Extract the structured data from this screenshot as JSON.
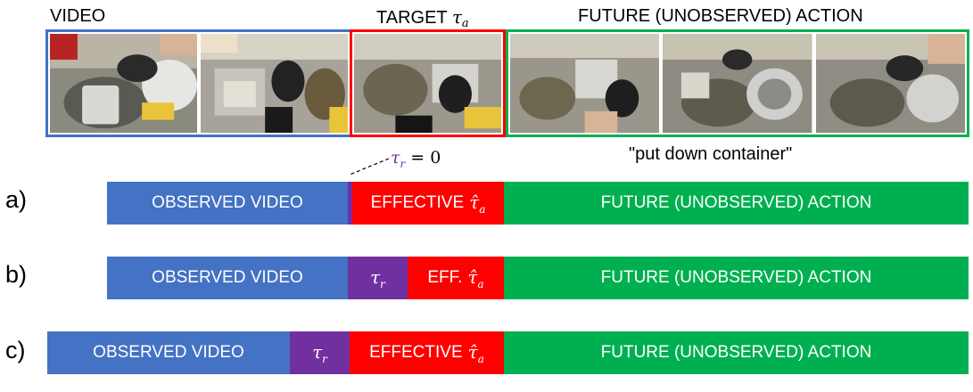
{
  "headers": {
    "video": "VIDEO",
    "target_prefix": "TARGET",
    "target_symbol": "τ",
    "target_sub": "a",
    "future": "FUTURE (UNOBSERVED) ACTION"
  },
  "caption": "\"put down container\"",
  "tau_r_zero": {
    "symbol": "τ",
    "sub": "r",
    "eq": " = 0"
  },
  "rows": [
    {
      "label": "a)",
      "observed": "OBSERVED VIDEO",
      "effective_prefix": "EFFECTIVE",
      "effective_symbol": "τ̂",
      "effective_sub": "a",
      "future": "FUTURE (UNOBSERVED) ACTION"
    },
    {
      "label": "b)",
      "observed": "OBSERVED VIDEO",
      "tau_r_symbol": "τ",
      "tau_r_sub": "r",
      "effective_prefix": "EFF.",
      "effective_symbol": "τ̂",
      "effective_sub": "a",
      "future": "FUTURE (UNOBSERVED) ACTION"
    },
    {
      "label": "c)",
      "observed": "OBSERVED VIDEO",
      "tau_r_symbol": "τ",
      "tau_r_sub": "r",
      "effective_prefix": "EFFECTIVE",
      "effective_symbol": "τ̂",
      "effective_sub": "a",
      "future": "FUTURE (UNOBSERVED) ACTION"
    }
  ],
  "colors": {
    "observed": "#4472c4",
    "tau_r": "#7030a0",
    "effective": "#ff0000",
    "future": "#00b050"
  }
}
